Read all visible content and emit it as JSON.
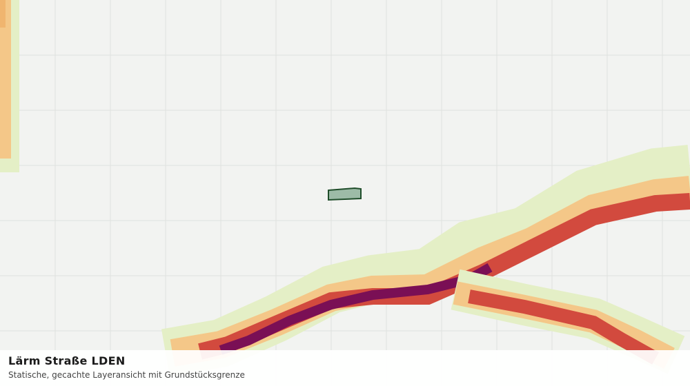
{
  "legend": {
    "title": "Lärm Straße LDEN",
    "subtitle": "Statische, gecachte Layeransicht mit Grundstücksgrenze"
  }
}
